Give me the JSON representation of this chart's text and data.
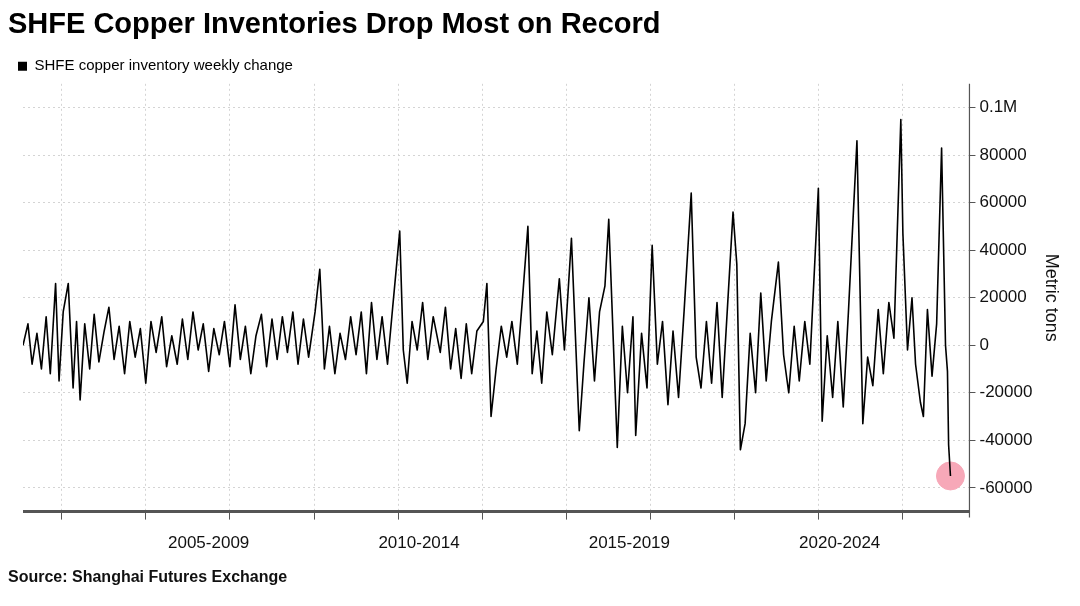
{
  "chart_data": {
    "type": "line",
    "title": "SHFE Copper Inventories Drop Most on Record",
    "ylabel": "Metric tons",
    "annotations": [
      "Source: Shanghai Futures Exchange"
    ],
    "xlim": [
      "2003-01-31",
      "2025-08-01"
    ],
    "xticks": [
      {
        "value": "2004-01-01",
        "label": null
      },
      {
        "value": "2006-01-01",
        "label": null
      },
      {
        "value": "2007-07-01",
        "label": "2005-2009"
      },
      {
        "value": "2008-01-01",
        "label": null
      },
      {
        "value": "2010-01-01",
        "label": null
      },
      {
        "value": "2012-01-01",
        "label": null
      },
      {
        "value": "2012-07-01",
        "label": "2010-2014"
      },
      {
        "value": "2014-01-01",
        "label": null
      },
      {
        "value": "2016-01-01",
        "label": null
      },
      {
        "value": "2017-07-01",
        "label": "2015-2019"
      },
      {
        "value": "2018-01-01",
        "label": null
      },
      {
        "value": "2020-01-01",
        "label": null
      },
      {
        "value": "2022-01-01",
        "label": null
      },
      {
        "value": "2022-07-01",
        "label": "2020-2024"
      },
      {
        "value": "2024-01-01",
        "label": null
      }
    ],
    "ylim": [
      -70000,
      110000
    ],
    "yticks": [
      -60000,
      -40000,
      -20000,
      0,
      20000,
      40000,
      60000,
      80000,
      {
        "value": 100000,
        "label": "0.1M"
      }
    ],
    "grid": true,
    "legend": "top left",
    "line_style": "solid",
    "series": [
      {
        "name": "SHFE copper inventory weekly change",
        "color": "#000000",
        "marker": "none",
        "x": [
          "2003-01-31",
          "2003-03-15",
          "2003-04-20",
          "2003-06-01",
          "2003-07-10",
          "2003-08-20",
          "2003-09-25",
          "2003-11-10",
          "2003-12-10",
          "2004-01-15",
          "2004-02-28",
          "2004-04-10",
          "2004-05-10",
          "2004-06-10",
          "2004-07-20",
          "2004-09-01",
          "2004-10-10",
          "2004-11-20",
          "2005-01-05",
          "2005-02-15",
          "2005-04-01",
          "2005-05-15",
          "2005-07-01",
          "2005-08-15",
          "2005-10-01",
          "2005-11-15",
          "2006-01-01",
          "2006-02-15",
          "2006-04-01",
          "2006-05-20",
          "2006-07-01",
          "2006-08-15",
          "2006-10-01",
          "2006-11-15",
          "2007-01-01",
          "2007-02-15",
          "2007-04-01",
          "2007-05-15",
          "2007-07-01",
          "2007-08-15",
          "2007-10-01",
          "2007-11-15",
          "2008-01-01",
          "2008-02-15",
          "2008-04-01",
          "2008-05-15",
          "2008-07-01",
          "2008-08-15",
          "2008-10-01",
          "2008-11-15",
          "2009-01-01",
          "2009-02-15",
          "2009-04-01",
          "2009-05-15",
          "2009-07-01",
          "2009-08-15",
          "2009-10-01",
          "2009-11-15",
          "2010-01-10",
          "2010-02-20",
          "2010-04-01",
          "2010-05-15",
          "2010-07-01",
          "2010-08-15",
          "2010-10-01",
          "2010-11-15",
          "2011-01-01",
          "2011-02-15",
          "2011-04-01",
          "2011-05-15",
          "2011-07-01",
          "2011-08-15",
          "2011-10-01",
          "2011-11-15",
          "2012-01-15",
          "2012-02-15",
          "2012-03-20",
          "2012-05-01",
          "2012-06-15",
          "2012-08-01",
          "2012-09-15",
          "2012-11-01",
          "2013-01-01",
          "2013-02-15",
          "2013-04-01",
          "2013-05-15",
          "2013-07-01",
          "2013-08-15",
          "2013-10-01",
          "2013-11-15",
          "2014-01-10",
          "2014-02-10",
          "2014-03-18",
          "2014-05-01",
          "2014-06-15",
          "2014-08-01",
          "2014-09-15",
          "2014-11-01",
          "2014-12-15",
          "2015-02-01",
          "2015-03-10",
          "2015-04-20",
          "2015-06-01",
          "2015-07-15",
          "2015-09-01",
          "2015-11-01",
          "2015-12-15",
          "2016-02-14",
          "2016-04-22",
          "2016-06-01",
          "2016-07-15",
          "2016-09-01",
          "2016-10-15",
          "2016-12-01",
          "2017-01-03",
          "2017-03-18",
          "2017-05-01",
          "2017-06-15",
          "2017-08-01",
          "2017-08-25",
          "2017-10-15",
          "2017-12-01",
          "2018-01-15",
          "2018-03-01",
          "2018-04-15",
          "2018-06-01",
          "2018-07-15",
          "2018-09-01",
          "2018-10-20",
          "2018-12-20",
          "2019-02-01",
          "2019-03-15",
          "2019-05-01",
          "2019-06-15",
          "2019-08-01",
          "2019-09-15",
          "2019-11-01",
          "2019-12-18",
          "2020-01-20",
          "2020-02-20",
          "2020-04-01",
          "2020-05-15",
          "2020-07-01",
          "2020-08-15",
          "2020-10-01",
          "2020-11-15",
          "2021-01-15",
          "2021-03-01",
          "2021-04-15",
          "2021-06-01",
          "2021-07-15",
          "2021-09-01",
          "2021-10-15",
          "2021-12-28",
          "2022-01-30",
          "2022-03-15",
          "2022-05-01",
          "2022-06-15",
          "2022-08-01",
          "2022-09-15",
          "2022-11-28",
          "2023-01-18",
          "2023-03-01",
          "2023-04-15",
          "2023-06-01",
          "2023-07-15",
          "2023-09-01",
          "2023-10-15",
          "2023-12-14",
          "2024-01-01",
          "2024-02-10",
          "2024-03-20",
          "2024-04-20",
          "2024-06-01",
          "2024-06-27",
          "2024-08-01",
          "2024-09-10",
          "2024-10-20",
          "2024-12-02",
          "2025-01-05",
          "2025-01-22",
          "2025-02-01",
          "2025-02-17"
        ],
        "values": [
          0,
          9000,
          -8000,
          5000,
          -10000,
          12000,
          -12000,
          26000,
          -15000,
          14000,
          26000,
          -18000,
          10000,
          -23000,
          9000,
          -10000,
          13000,
          -7000,
          6000,
          16000,
          -6000,
          8000,
          -12000,
          10000,
          -5000,
          7000,
          -16000,
          10000,
          -3000,
          12000,
          -9000,
          4000,
          -8000,
          11000,
          -6000,
          14000,
          -2000,
          9000,
          -11000,
          7000,
          -4000,
          10000,
          -9000,
          17000,
          -6000,
          8000,
          -12000,
          4000,
          13000,
          -9000,
          11000,
          -6000,
          12000,
          -3000,
          14000,
          -8000,
          11000,
          -5000,
          14000,
          32000,
          -10000,
          8000,
          -12000,
          5000,
          -6000,
          12000,
          -4000,
          14000,
          -12000,
          18000,
          -6000,
          12000,
          -8000,
          16000,
          48000,
          -2000,
          -16000,
          10000,
          -2000,
          18000,
          -6000,
          12000,
          -3000,
          16000,
          -10000,
          7000,
          -14000,
          9000,
          -12000,
          6000,
          10000,
          26000,
          -30000,
          -10000,
          8000,
          -5000,
          10000,
          -8000,
          19000,
          50000,
          -12000,
          6000,
          -16000,
          14000,
          -4000,
          28000,
          -2000,
          45000,
          -36000,
          -8000,
          20000,
          -15000,
          14000,
          25000,
          53000,
          -43000,
          8000,
          -20000,
          12000,
          -38000,
          5000,
          -18000,
          42000,
          -8000,
          10000,
          -25000,
          6000,
          -22000,
          15000,
          64000,
          -5000,
          -18000,
          10000,
          -16000,
          18000,
          -22000,
          17000,
          56000,
          34000,
          -44000,
          -33000,
          5000,
          -20000,
          22000,
          -15000,
          10000,
          35000,
          -4000,
          -20000,
          8000,
          -15000,
          10000,
          -8000,
          66000,
          -32000,
          4000,
          -22000,
          10000,
          -26000,
          14000,
          86000,
          -33000,
          -5000,
          -17000,
          15000,
          -12000,
          18000,
          3000,
          95000,
          47000,
          -2000,
          20000,
          -8000,
          -24000,
          -30000,
          15000,
          -13000,
          9000,
          83000,
          0,
          -11000,
          -42000,
          -55000
        ]
      },
      {
        "type": "scatter",
        "color": "#f7a8b8",
        "marker": "circle",
        "x": [
          "2025-02-17"
        ],
        "values": [
          -55000
        ]
      }
    ]
  }
}
